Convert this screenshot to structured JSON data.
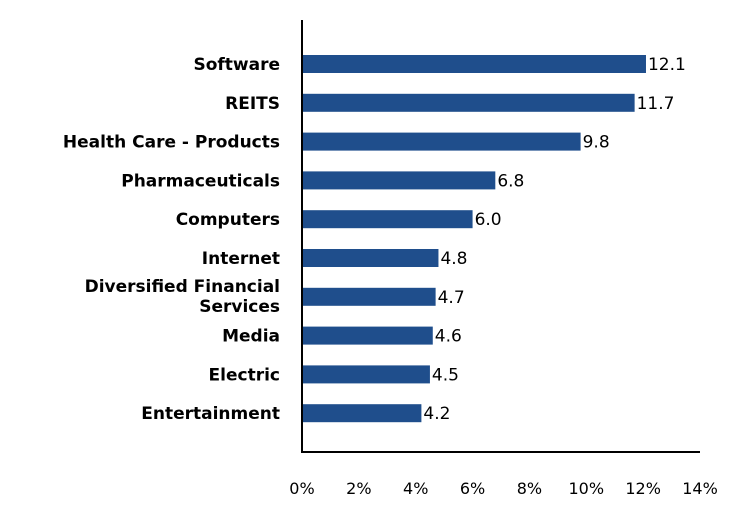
{
  "chart_data": {
    "type": "bar",
    "orientation": "horizontal",
    "categories": [
      "Software",
      "REITS",
      "Health Care - Products",
      "Pharmaceuticals",
      "Computers",
      "Internet",
      "Diversified Financial Services",
      "Media",
      "Electric",
      "Entertainment"
    ],
    "values": [
      12.1,
      11.7,
      9.8,
      6.8,
      6.0,
      4.8,
      4.7,
      4.6,
      4.5,
      4.2
    ],
    "value_labels": [
      "12.1",
      "11.7",
      "9.8",
      "6.8",
      "6.0",
      "4.8",
      "4.7",
      "4.6",
      "4.5",
      "4.2"
    ],
    "xlim": [
      0,
      14
    ],
    "xticks": [
      0,
      2,
      4,
      6,
      8,
      10,
      12,
      14
    ],
    "xtick_labels": [
      "0%",
      "2%",
      "4%",
      "6%",
      "8%",
      "10%",
      "12%",
      "14%"
    ],
    "bar_color": "#1f4e8c",
    "grid": false,
    "title": "",
    "xlabel": "",
    "ylabel": ""
  }
}
